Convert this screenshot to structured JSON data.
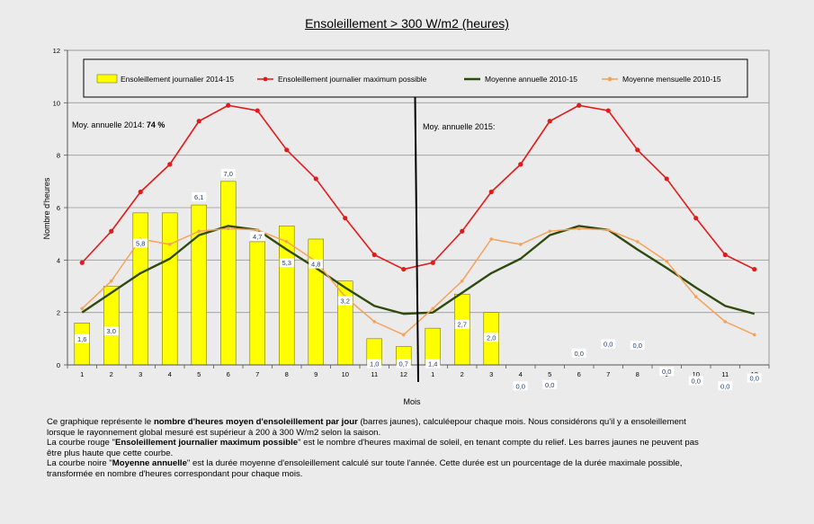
{
  "chart_data": {
    "type": "bar",
    "title": "Ensoleillement  > 300 W/m2 (heures)",
    "ylabel": "Nombre d'heures",
    "xlabel": "Mois",
    "ylim": [
      0,
      12
    ],
    "yticks": [
      0,
      2,
      4,
      6,
      8,
      10,
      12
    ],
    "categories": [
      "1",
      "2",
      "3",
      "4",
      "5",
      "6",
      "7",
      "8",
      "9",
      "10",
      "11",
      "12",
      "1",
      "2",
      "3",
      "4",
      "5",
      "6",
      "7",
      "8",
      "9",
      "10",
      "11",
      "12"
    ],
    "grid": true,
    "legend_position": "top",
    "series": [
      {
        "name": "Ensoleillement journalier 2014-15",
        "type": "bar",
        "color": "#ffff00",
        "values": [
          1.6,
          3.0,
          5.8,
          5.8,
          6.1,
          7.0,
          4.7,
          5.3,
          4.8,
          3.2,
          1.0,
          0.7,
          1.4,
          2.7,
          2.0,
          0.0,
          0.0,
          0.0,
          0.0,
          0.0,
          0.0,
          0.0,
          0.0,
          0.0
        ],
        "labels": [
          "1,6",
          "3,0",
          "5,8",
          "",
          "6,1",
          "7,0",
          "4,7",
          "5,3",
          "4,8",
          "3,2",
          "1,0",
          "0,7",
          "1,4",
          "2,7",
          "2,0",
          "0,0",
          "0,0",
          "0,0",
          "0,0",
          "0,0",
          "0,0",
          "0,0",
          "0,0",
          "0,0"
        ]
      },
      {
        "name": "Ensoleillement journalier maximum possible",
        "type": "line",
        "color": "#e01b1b",
        "values": [
          3.9,
          5.1,
          6.6,
          7.65,
          9.3,
          9.9,
          9.7,
          8.2,
          7.1,
          5.6,
          4.2,
          3.65,
          3.9,
          5.1,
          6.6,
          7.65,
          9.3,
          9.9,
          9.7,
          8.2,
          7.1,
          5.6,
          4.2,
          3.65
        ]
      },
      {
        "name": "Moyenne annuelle 2010-15",
        "type": "line",
        "color": "#2f4a0e",
        "values": [
          2.0,
          2.75,
          3.5,
          4.05,
          4.95,
          5.3,
          5.15,
          4.4,
          3.7,
          2.95,
          2.25,
          1.95,
          2.0,
          2.75,
          3.5,
          4.05,
          4.95,
          5.3,
          5.15,
          4.4,
          3.7,
          2.95,
          2.25,
          1.95
        ]
      },
      {
        "name": "Moyenne mensuelle 2010-15",
        "type": "line",
        "color": "#f5a25a",
        "values": [
          2.15,
          3.2,
          4.8,
          4.6,
          5.1,
          5.2,
          5.15,
          4.7,
          3.95,
          2.6,
          1.65,
          1.15,
          2.15,
          3.2,
          4.8,
          4.6,
          5.1,
          5.2,
          5.15,
          4.7,
          3.95,
          2.6,
          1.65,
          1.15
        ]
      }
    ],
    "annotations": {
      "annual_2014_prefix": "Moy. annuelle 2014: ",
      "annual_2014_value": "74 %",
      "annual_2015": "Moy. annuelle 2015:"
    }
  },
  "caption": {
    "p1_a": "Ce graphique  représente le ",
    "p1_b": "nombre d'heures moyen d'ensoleillement par jour",
    "p1_c": " (barres  jaunes), calculéepour chaque mois. Nous considérons qu'il y a ensoleillement lorsque le rayonnement global mesuré est supérieur à 200 à 300 W/m2 selon la saison.",
    "p2_a": "La courbe rouge \"",
    "p2_b": "Ensoleillement journalier  maximum possible",
    "p2_c": "\" est le  nombre d'heures maximal de soleil, en tenant compte du relief. Les barres jaunes ne peuvent pas être plus haute que cette courbe.",
    "p3_a": "La courbe noire \"",
    "p3_b": "Moyenne annuelle",
    "p3_c": "\"  est la durée moyenne d'ensoleillement  calculé sur toute l'année. Cette durée est un pourcentage de la durée maximale possible, transformée en nombre d'heures correspondant pour chaque mois."
  }
}
